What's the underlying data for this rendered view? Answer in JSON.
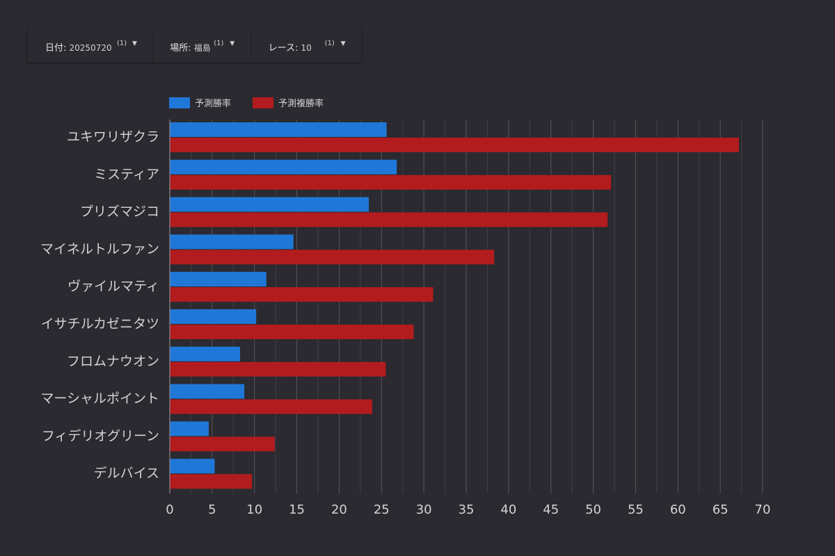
{
  "filters": {
    "date": {
      "label": "日付",
      "value": "20250720",
      "count": "(1)"
    },
    "place": {
      "label": "場所",
      "value": "福島",
      "count": "(1)"
    },
    "race": {
      "label": "レース",
      "value": "10",
      "count": "(1)"
    }
  },
  "colors": {
    "win": "#1f78d8",
    "place": "#b21c1e",
    "grid": "#5c5b61",
    "axis": "#8a8990",
    "text": "#d4d4d4",
    "background": "#2b2a30"
  },
  "chart_data": {
    "type": "bar",
    "orientation": "horizontal",
    "categories": [
      "ユキワリザクラ",
      "ミスティア",
      "プリズマジコ",
      "マイネルトルファン",
      "ヴァイルマティ",
      "イサチルカゼニタツ",
      "フロムナウオン",
      "マーシャルポイント",
      "フィデリオグリーン",
      "デルバイス"
    ],
    "series": [
      {
        "name": "予測勝率",
        "values": [
          25.6,
          26.8,
          23.5,
          14.6,
          11.4,
          10.2,
          8.3,
          8.8,
          4.6,
          5.3
        ]
      },
      {
        "name": "予測複勝率",
        "values": [
          67.2,
          52.1,
          51.7,
          38.3,
          31.1,
          28.8,
          25.5,
          23.9,
          12.4,
          9.7
        ]
      }
    ],
    "xlim": [
      0,
      70
    ],
    "xticks": [
      0,
      5,
      10,
      15,
      20,
      25,
      30,
      35,
      40,
      45,
      50,
      55,
      60,
      65,
      70
    ],
    "grid": true,
    "legend": "top-left"
  }
}
